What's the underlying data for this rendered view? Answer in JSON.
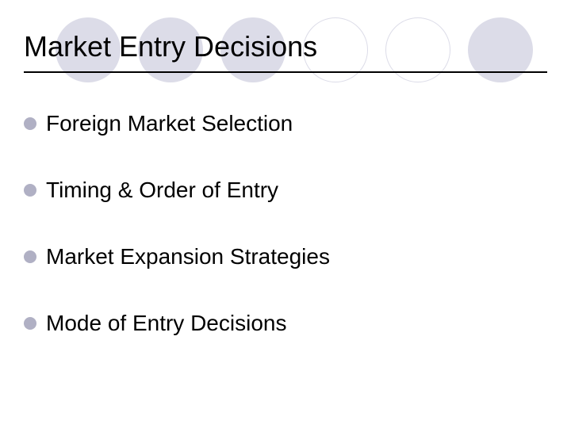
{
  "slide": {
    "title": "Market Entry Decisions",
    "items": [
      {
        "label": "Foreign Market Selection"
      },
      {
        "label": "Timing & Order of Entry"
      },
      {
        "label": "Market Expansion Strategies"
      },
      {
        "label": "Mode of Entry Decisions"
      }
    ],
    "circles": [
      {
        "type": "filled"
      },
      {
        "type": "filled"
      },
      {
        "type": "filled"
      },
      {
        "type": "outline"
      },
      {
        "type": "outline"
      },
      {
        "type": "filled"
      }
    ],
    "colors": {
      "background": "#ffffff",
      "circle_fill": "#dcdce8",
      "circle_outline": "#dcdce8",
      "bullet": "#b0b0c4",
      "text": "#000000",
      "underline": "#000000"
    },
    "typography": {
      "title_fontsize": 36,
      "item_fontsize": 28,
      "font_family": "Arial"
    }
  }
}
